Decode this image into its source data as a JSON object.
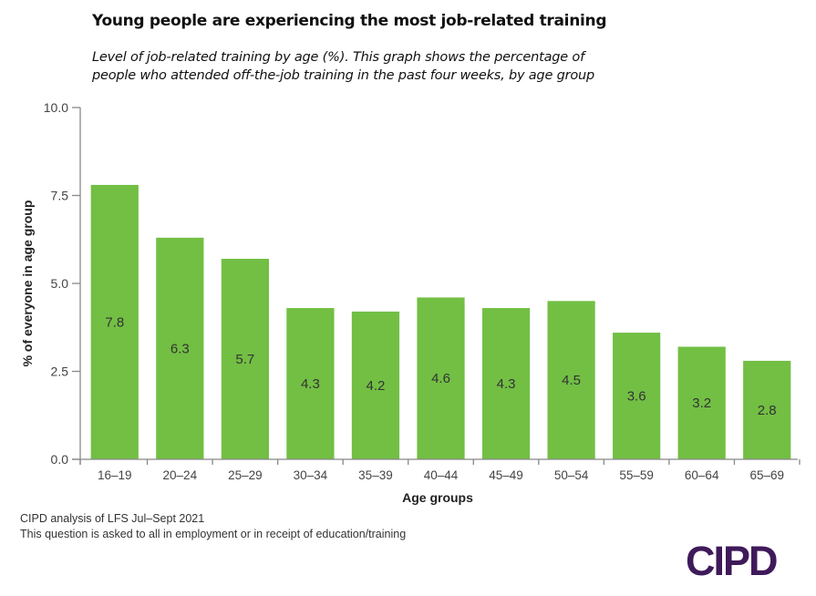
{
  "header": {
    "title": "Young people are experiencing the most job-related training",
    "subtitle_line1": "Level of job-related training by age (%). This graph shows the percentage of",
    "subtitle_line2": "people who attended off-the-job training in the past four weeks, by age group"
  },
  "footer": {
    "source_line1": "CIPD analysis of LFS Jul–Sept 2021",
    "source_line2": "This question is asked to all in employment or in receipt of education/training",
    "logo_text": "CIPD"
  },
  "colors": {
    "bar": "#72bf44",
    "logo": "#3f1a5a",
    "axis": "#888888"
  },
  "chart_data": {
    "type": "bar",
    "title": "Young people are experiencing the most job-related training",
    "xlabel": "Age groups",
    "ylabel": "% of everyone in age group",
    "categories": [
      "16–19",
      "20–24",
      "25–29",
      "30–34",
      "35–39",
      "40–44",
      "45–49",
      "50–54",
      "55–59",
      "60–64",
      "65–69"
    ],
    "values": [
      7.8,
      6.3,
      5.7,
      4.3,
      4.2,
      4.6,
      4.3,
      4.5,
      3.6,
      3.2,
      2.8
    ],
    "data_labels": [
      "7.8",
      "6.3",
      "5.7",
      "4.3",
      "4.2",
      "4.6",
      "4.3",
      "4.5",
      "3.6",
      "3.2",
      "2.8"
    ],
    "ylim": [
      0,
      10
    ],
    "yticks": [
      0,
      2.5,
      5,
      7.5,
      10
    ],
    "ytick_labels": [
      "0.0",
      "2.5",
      "5.0",
      "7.5",
      "10.0"
    ],
    "grid": false,
    "legend": "none"
  }
}
